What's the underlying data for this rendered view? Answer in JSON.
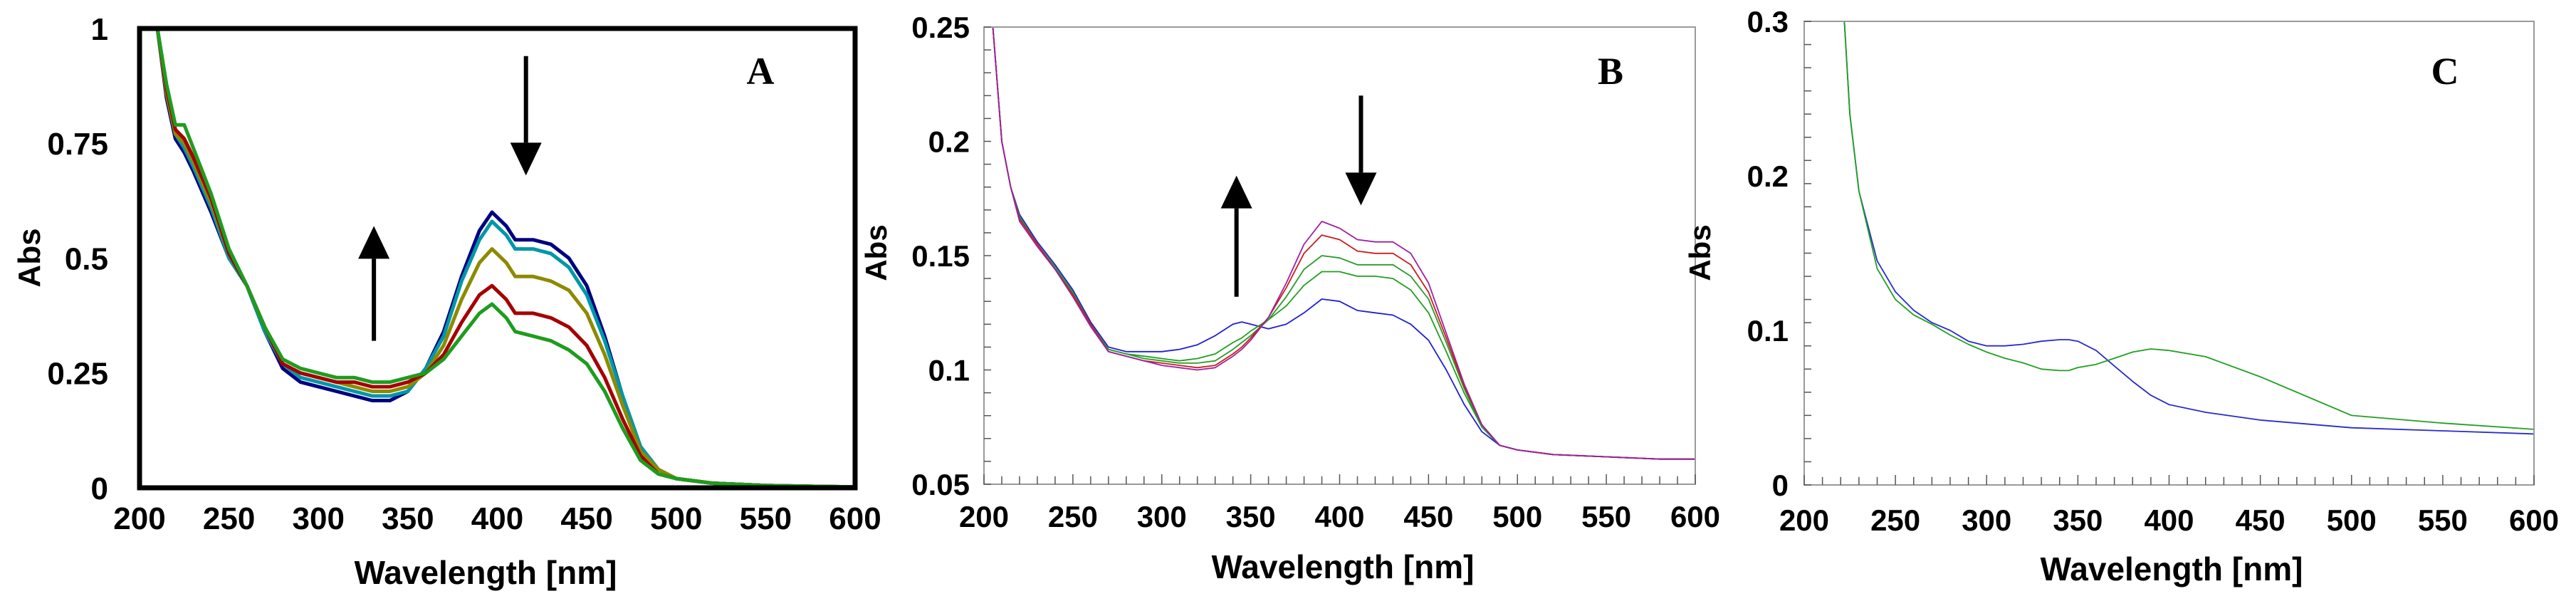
{
  "chart_data": [
    {
      "panel": "A",
      "type": "line",
      "xlabel": "Wavelength [nm]",
      "ylabel": "Abs",
      "xlim": [
        200,
        600
      ],
      "ylim": [
        0,
        1
      ],
      "xticks": [
        200,
        250,
        300,
        350,
        400,
        450,
        500,
        550,
        600
      ],
      "yticks": [
        0,
        0.25,
        0.5,
        0.75,
        1
      ],
      "ytick_labels": [
        "0",
        "0.25",
        "0.5",
        "0.75",
        "1"
      ],
      "annotations": [
        {
          "type": "arrow-up",
          "x": 331,
          "y_from": 0.32,
          "y_to": 0.57
        },
        {
          "type": "arrow-down",
          "x": 416,
          "y_from": 0.94,
          "y_to": 0.68
        }
      ],
      "series": [
        {
          "name": "trace-1",
          "color": "#00007f",
          "x": [
            210,
            215,
            220,
            225,
            230,
            240,
            250,
            260,
            270,
            280,
            290,
            300,
            310,
            320,
            330,
            340,
            350,
            360,
            370,
            380,
            390,
            397,
            405,
            410,
            420,
            430,
            440,
            450,
            460,
            470,
            480,
            490,
            500,
            520,
            550,
            580,
            600
          ],
          "y": [
            1,
            0.85,
            0.76,
            0.73,
            0.69,
            0.6,
            0.5,
            0.44,
            0.34,
            0.26,
            0.23,
            0.22,
            0.21,
            0.2,
            0.19,
            0.19,
            0.21,
            0.26,
            0.34,
            0.46,
            0.56,
            0.6,
            0.57,
            0.54,
            0.54,
            0.53,
            0.5,
            0.44,
            0.33,
            0.2,
            0.09,
            0.04,
            0.02,
            0.01,
            0.005,
            0.003,
            0.002
          ]
        },
        {
          "name": "trace-2",
          "color": "#0097a7",
          "x": [
            210,
            215,
            220,
            225,
            230,
            240,
            250,
            260,
            270,
            280,
            290,
            300,
            310,
            320,
            330,
            340,
            350,
            360,
            370,
            380,
            390,
            397,
            405,
            410,
            420,
            430,
            440,
            450,
            460,
            470,
            480,
            490,
            500,
            520,
            550,
            580,
            600
          ],
          "y": [
            1,
            0.86,
            0.77,
            0.74,
            0.7,
            0.61,
            0.5,
            0.44,
            0.34,
            0.27,
            0.24,
            0.23,
            0.22,
            0.21,
            0.2,
            0.2,
            0.21,
            0.26,
            0.33,
            0.45,
            0.54,
            0.58,
            0.55,
            0.52,
            0.52,
            0.51,
            0.48,
            0.42,
            0.32,
            0.2,
            0.09,
            0.04,
            0.02,
            0.01,
            0.005,
            0.003,
            0.002
          ]
        },
        {
          "name": "trace-3",
          "color": "#8d8a00",
          "x": [
            210,
            215,
            220,
            225,
            230,
            240,
            250,
            260,
            270,
            280,
            290,
            300,
            310,
            320,
            330,
            340,
            350,
            360,
            370,
            380,
            390,
            397,
            405,
            410,
            420,
            430,
            440,
            450,
            460,
            470,
            480,
            490,
            500,
            520,
            550,
            580,
            600
          ],
          "y": [
            1,
            0.86,
            0.77,
            0.75,
            0.71,
            0.62,
            0.51,
            0.44,
            0.35,
            0.27,
            0.25,
            0.24,
            0.23,
            0.22,
            0.21,
            0.21,
            0.22,
            0.25,
            0.31,
            0.41,
            0.49,
            0.52,
            0.49,
            0.46,
            0.46,
            0.45,
            0.43,
            0.38,
            0.29,
            0.18,
            0.08,
            0.04,
            0.02,
            0.01,
            0.005,
            0.003,
            0.002
          ]
        },
        {
          "name": "trace-4",
          "color": "#a50000",
          "x": [
            210,
            215,
            220,
            225,
            230,
            240,
            250,
            260,
            270,
            280,
            290,
            300,
            310,
            320,
            330,
            340,
            350,
            360,
            370,
            380,
            390,
            397,
            405,
            410,
            420,
            430,
            440,
            450,
            460,
            470,
            480,
            490,
            500,
            520,
            550,
            580,
            600
          ],
          "y": [
            1,
            0.87,
            0.78,
            0.76,
            0.72,
            0.63,
            0.51,
            0.44,
            0.35,
            0.27,
            0.25,
            0.24,
            0.23,
            0.23,
            0.22,
            0.22,
            0.23,
            0.25,
            0.29,
            0.36,
            0.42,
            0.44,
            0.41,
            0.38,
            0.38,
            0.37,
            0.35,
            0.31,
            0.24,
            0.15,
            0.07,
            0.03,
            0.02,
            0.01,
            0.005,
            0.003,
            0.002
          ]
        },
        {
          "name": "trace-5",
          "color": "#1e9c1e",
          "x": [
            210,
            215,
            220,
            225,
            230,
            240,
            250,
            260,
            270,
            280,
            290,
            300,
            310,
            320,
            330,
            340,
            350,
            360,
            370,
            380,
            390,
            397,
            405,
            410,
            420,
            430,
            440,
            450,
            460,
            470,
            480,
            490,
            500,
            520,
            550,
            580,
            600
          ],
          "y": [
            1,
            0.88,
            0.79,
            0.79,
            0.74,
            0.64,
            0.52,
            0.44,
            0.35,
            0.28,
            0.26,
            0.25,
            0.24,
            0.24,
            0.23,
            0.23,
            0.24,
            0.25,
            0.28,
            0.33,
            0.38,
            0.4,
            0.37,
            0.34,
            0.33,
            0.32,
            0.3,
            0.27,
            0.21,
            0.13,
            0.06,
            0.03,
            0.02,
            0.01,
            0.005,
            0.003,
            0.002
          ]
        }
      ]
    },
    {
      "panel": "B",
      "type": "line",
      "xlabel": "Wavelength [nm]",
      "ylabel": "Abs",
      "xlim": [
        200,
        600
      ],
      "ylim": [
        0.05,
        0.25
      ],
      "xticks": [
        200,
        250,
        300,
        350,
        400,
        450,
        500,
        550,
        600
      ],
      "yticks": [
        0.05,
        0.1,
        0.15,
        0.2,
        0.25
      ],
      "ytick_labels": [
        "0.05",
        "0.1",
        "0.15",
        "0.2",
        "0.25"
      ],
      "annotations": [
        {
          "type": "arrow-up",
          "x": 342,
          "y_from": 0.132,
          "y_to": 0.185
        },
        {
          "type": "arrow-down",
          "x": 412,
          "y_from": 0.22,
          "y_to": 0.172
        }
      ],
      "series": [
        {
          "name": "trace-1",
          "color": "#1f1fd8",
          "x": [
            205,
            210,
            215,
            220,
            230,
            240,
            250,
            260,
            270,
            280,
            290,
            300,
            310,
            320,
            330,
            340,
            345,
            350,
            360,
            370,
            380,
            390,
            400,
            410,
            420,
            430,
            440,
            450,
            460,
            470,
            480,
            490,
            500,
            520,
            550,
            580,
            600
          ],
          "y": [
            0.25,
            0.2,
            0.18,
            0.168,
            0.156,
            0.146,
            0.135,
            0.121,
            0.11,
            0.108,
            0.108,
            0.108,
            0.109,
            0.111,
            0.115,
            0.12,
            0.121,
            0.12,
            0.118,
            0.12,
            0.125,
            0.131,
            0.13,
            0.126,
            0.125,
            0.124,
            0.12,
            0.113,
            0.1,
            0.085,
            0.073,
            0.067,
            0.065,
            0.063,
            0.062,
            0.061,
            0.061
          ]
        },
        {
          "name": "trace-2",
          "color": "#1ea01e",
          "x": [
            205,
            210,
            215,
            220,
            230,
            240,
            250,
            260,
            270,
            280,
            290,
            300,
            310,
            320,
            330,
            340,
            345,
            350,
            360,
            370,
            380,
            390,
            400,
            410,
            420,
            430,
            440,
            450,
            460,
            470,
            480,
            490,
            500,
            520,
            550,
            580,
            600
          ],
          "y": [
            0.25,
            0.2,
            0.18,
            0.167,
            0.155,
            0.145,
            0.134,
            0.12,
            0.109,
            0.107,
            0.106,
            0.105,
            0.104,
            0.105,
            0.107,
            0.112,
            0.114,
            0.117,
            0.122,
            0.128,
            0.137,
            0.143,
            0.143,
            0.141,
            0.141,
            0.14,
            0.135,
            0.125,
            0.108,
            0.09,
            0.075,
            0.067,
            0.065,
            0.063,
            0.062,
            0.061,
            0.061
          ]
        },
        {
          "name": "trace-3",
          "color": "#2a9b2a",
          "x": [
            205,
            210,
            215,
            220,
            230,
            240,
            250,
            260,
            270,
            280,
            290,
            300,
            310,
            320,
            330,
            340,
            345,
            350,
            360,
            370,
            380,
            390,
            400,
            410,
            420,
            430,
            440,
            450,
            460,
            470,
            480,
            490,
            500,
            520,
            550,
            580,
            600
          ],
          "y": [
            0.25,
            0.2,
            0.18,
            0.166,
            0.155,
            0.145,
            0.133,
            0.12,
            0.109,
            0.107,
            0.105,
            0.104,
            0.103,
            0.103,
            0.104,
            0.109,
            0.112,
            0.115,
            0.122,
            0.132,
            0.144,
            0.15,
            0.149,
            0.146,
            0.146,
            0.146,
            0.141,
            0.131,
            0.112,
            0.092,
            0.075,
            0.067,
            0.065,
            0.063,
            0.062,
            0.061,
            0.061
          ]
        },
        {
          "name": "trace-4",
          "color": "#c81e1e",
          "x": [
            205,
            210,
            215,
            220,
            230,
            240,
            250,
            260,
            270,
            280,
            290,
            300,
            310,
            320,
            330,
            340,
            345,
            350,
            360,
            370,
            380,
            390,
            400,
            410,
            420,
            430,
            440,
            450,
            460,
            470,
            480,
            490,
            500,
            520,
            550,
            580,
            600
          ],
          "y": [
            0.25,
            0.2,
            0.18,
            0.166,
            0.155,
            0.144,
            0.133,
            0.12,
            0.108,
            0.106,
            0.104,
            0.103,
            0.102,
            0.101,
            0.102,
            0.107,
            0.11,
            0.114,
            0.123,
            0.136,
            0.151,
            0.159,
            0.157,
            0.152,
            0.151,
            0.151,
            0.146,
            0.134,
            0.114,
            0.093,
            0.076,
            0.067,
            0.065,
            0.063,
            0.062,
            0.061,
            0.061
          ]
        },
        {
          "name": "trace-5",
          "color": "#a020a0",
          "x": [
            205,
            210,
            215,
            220,
            230,
            240,
            250,
            260,
            270,
            280,
            290,
            300,
            310,
            320,
            330,
            340,
            345,
            350,
            360,
            370,
            380,
            390,
            400,
            410,
            420,
            430,
            440,
            450,
            460,
            470,
            480,
            490,
            500,
            520,
            550,
            580,
            600
          ],
          "y": [
            0.25,
            0.2,
            0.18,
            0.165,
            0.154,
            0.144,
            0.132,
            0.119,
            0.108,
            0.106,
            0.104,
            0.102,
            0.101,
            0.1,
            0.101,
            0.106,
            0.109,
            0.113,
            0.123,
            0.138,
            0.155,
            0.165,
            0.162,
            0.157,
            0.156,
            0.156,
            0.151,
            0.138,
            0.116,
            0.094,
            0.076,
            0.067,
            0.065,
            0.063,
            0.062,
            0.061,
            0.061
          ]
        }
      ]
    },
    {
      "panel": "C",
      "type": "line",
      "xlabel": "Wavelength [nm]",
      "ylabel": "Abs",
      "xlim": [
        200,
        600
      ],
      "ylim": [
        0,
        0.3
      ],
      "xticks": [
        200,
        250,
        300,
        350,
        400,
        450,
        500,
        550,
        600
      ],
      "yticks": [
        0,
        0.1,
        0.2,
        0.3
      ],
      "ytick_labels": [
        "0",
        "0.1",
        "0.2",
        "0.3"
      ],
      "annotations": [],
      "series": [
        {
          "name": "trace-1",
          "color": "#2a2ad0",
          "x": [
            222,
            225,
            230,
            240,
            250,
            260,
            270,
            280,
            290,
            300,
            310,
            320,
            330,
            340,
            345,
            350,
            360,
            370,
            380,
            390,
            400,
            420,
            450,
            500,
            550,
            600
          ],
          "y": [
            0.3,
            0.24,
            0.19,
            0.145,
            0.125,
            0.113,
            0.105,
            0.1,
            0.093,
            0.09,
            0.09,
            0.091,
            0.093,
            0.094,
            0.094,
            0.093,
            0.087,
            0.077,
            0.067,
            0.058,
            0.052,
            0.047,
            0.042,
            0.037,
            0.035,
            0.033
          ]
        },
        {
          "name": "trace-2",
          "color": "#21a021",
          "x": [
            222,
            225,
            230,
            240,
            250,
            260,
            270,
            280,
            290,
            300,
            310,
            320,
            330,
            340,
            345,
            350,
            360,
            370,
            380,
            390,
            400,
            420,
            450,
            500,
            550,
            600
          ],
          "y": [
            0.3,
            0.24,
            0.19,
            0.14,
            0.12,
            0.11,
            0.104,
            0.097,
            0.091,
            0.086,
            0.082,
            0.079,
            0.075,
            0.074,
            0.074,
            0.076,
            0.078,
            0.082,
            0.086,
            0.088,
            0.087,
            0.083,
            0.07,
            0.045,
            0.04,
            0.036
          ]
        }
      ]
    }
  ]
}
